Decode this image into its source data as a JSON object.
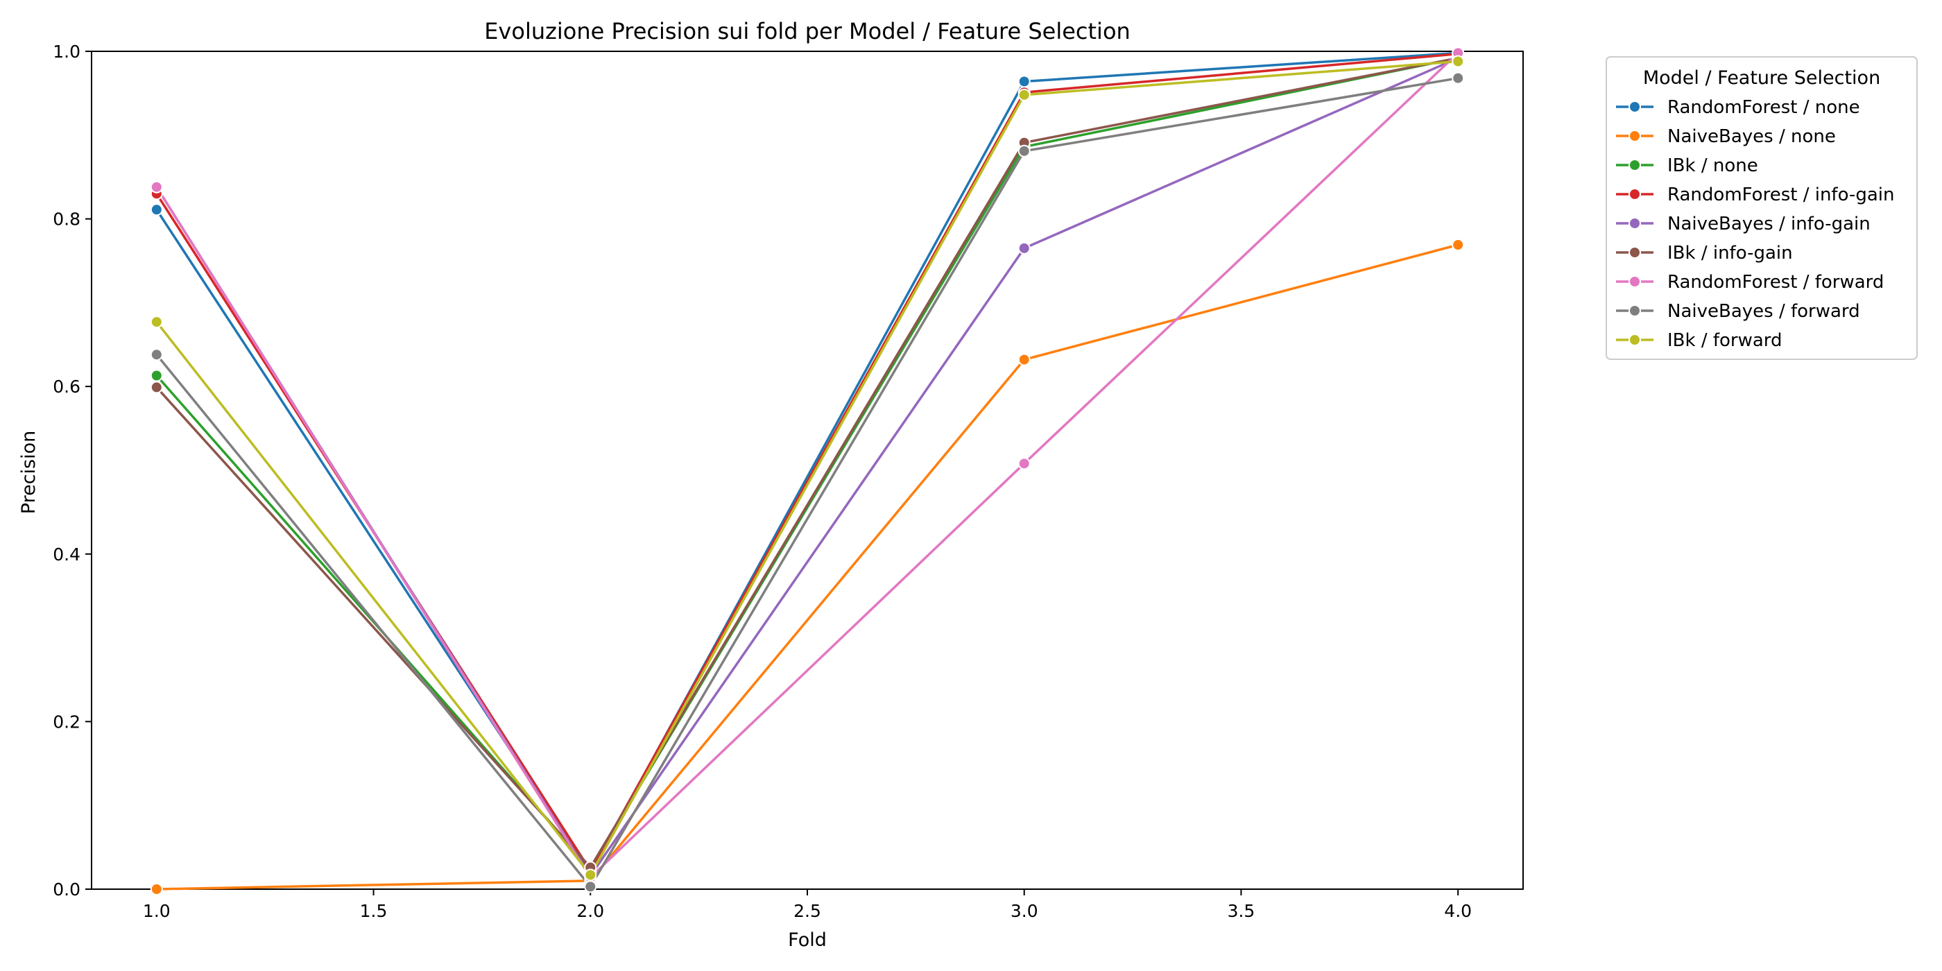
{
  "chart_data": {
    "type": "line",
    "title": "Evoluzione Precision sui fold per Model / Feature Selection",
    "xlabel": "Fold",
    "ylabel": "Precision",
    "xlim": [
      0.85,
      4.15
    ],
    "ylim": [
      0.0,
      1.0
    ],
    "x_ticks": [
      "1.0",
      "1.5",
      "2.0",
      "2.5",
      "3.0",
      "3.5",
      "4.0"
    ],
    "y_ticks": [
      "0.0",
      "0.2",
      "0.4",
      "0.6",
      "0.8",
      "1.0"
    ],
    "grid": false,
    "x": [
      1.0,
      2.0,
      3.0,
      4.0
    ],
    "legend": {
      "title": "Model / Feature Selection",
      "placement": "outside-top-right"
    },
    "series": [
      {
        "name": "RandomForest / none",
        "color": "#1f77b4",
        "values": [
          0.811,
          0.02,
          0.964,
          0.998
        ]
      },
      {
        "name": "NaiveBayes / none",
        "color": "#ff7f0e",
        "values": [
          0.0,
          0.01,
          0.632,
          0.769
        ]
      },
      {
        "name": "IBk / none",
        "color": "#2ca02c",
        "values": [
          0.613,
          0.025,
          0.886,
          0.992
        ]
      },
      {
        "name": "RandomForest / info-gain",
        "color": "#d62728",
        "values": [
          0.83,
          0.022,
          0.951,
          0.997
        ]
      },
      {
        "name": "NaiveBayes / info-gain",
        "color": "#9467bd",
        "values": [
          0.838,
          0.016,
          0.765,
          0.992
        ]
      },
      {
        "name": "IBk / info-gain",
        "color": "#8c564b",
        "values": [
          0.599,
          0.026,
          0.891,
          0.992
        ]
      },
      {
        "name": "RandomForest / forward",
        "color": "#e377c2",
        "values": [
          0.838,
          0.014,
          0.508,
          0.998
        ]
      },
      {
        "name": "NaiveBayes / forward",
        "color": "#7f7f7f",
        "values": [
          0.638,
          0.003,
          0.881,
          0.968
        ]
      },
      {
        "name": "IBk / forward",
        "color": "#bcbd22",
        "values": [
          0.677,
          0.017,
          0.948,
          0.988
        ]
      }
    ]
  }
}
